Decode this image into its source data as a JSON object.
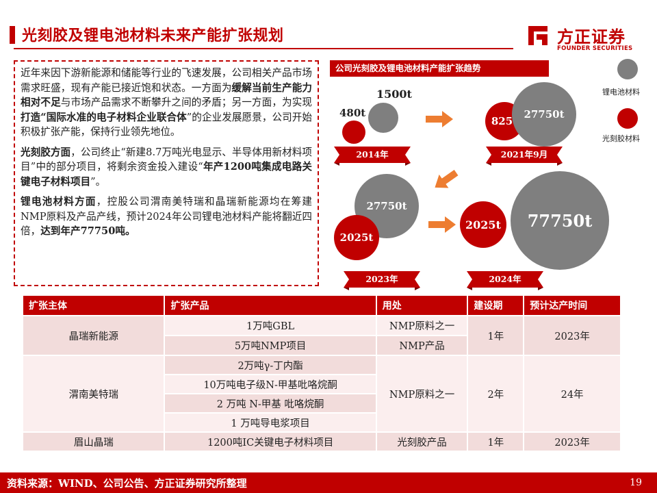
{
  "page": {
    "title": "光刻胶及锂电池材料未来产能扩张规划",
    "logo_cn": "方正证券",
    "logo_en": "FOUNDER SECURITIES",
    "page_number": "19",
    "source": "资料来源：WIND、公司公告、方正证券研究所整理"
  },
  "text": {
    "p1": [
      {
        "t": "近年来因下游新能源和储能等行业的飞速发展，公司相关产品市场需求旺盛，现有产能已接近饱和状态。一方面为"
      },
      {
        "t": "缓解当前生产能力相对不足",
        "b": true
      },
      {
        "t": "与市场产品需求不断攀升之间的矛盾；另一方面，为实现"
      },
      {
        "t": "打造“国际水准的电子材料企业联合体",
        "b": true
      },
      {
        "t": "”的企业发展愿景，公司开始积极扩张产能，保持行业领先地位。"
      }
    ],
    "p2": [
      {
        "t": "光刻胶方面",
        "b": true
      },
      {
        "t": "，公司终止“新建8.7万吨光电显示、半导体用新材料项目”中的部分项目，将剩余资金投入建设“"
      },
      {
        "t": "年产1200吨集成电路关键电子材料项目",
        "b": true
      },
      {
        "t": "”。"
      }
    ],
    "p3": [
      {
        "t": "锂电池材料方面",
        "b": true
      },
      {
        "t": "，控股公司渭南美特瑞和晶瑞新能源均在筹建NMP原料及产品产线，预计2024年公司锂电池材料产能将翻近四倍，"
      },
      {
        "t": "达到年产77750吨。",
        "b": true
      }
    ]
  },
  "chart": {
    "title": "公司光刻胶及锂电池材料产能扩张趋势",
    "legend": [
      {
        "label": "锂电池材料",
        "color": "#7f7f7f"
      },
      {
        "label": "光刻胶材料",
        "color": "#c00000"
      }
    ],
    "colors": {
      "accent": "#c00000",
      "grey": "#7f7f7f",
      "arrow": "#ed7d31"
    },
    "periods": [
      {
        "label": "2014年",
        "lithium": "1500t",
        "photoresist": "480t"
      },
      {
        "label": "2021年9月",
        "lithium": "27750t",
        "photoresist": "825t"
      },
      {
        "label": "2023年",
        "lithium": "27750t",
        "photoresist": "2025t"
      },
      {
        "label": "2024年",
        "lithium": "77750t",
        "photoresist": "2025t"
      }
    ]
  },
  "table": {
    "headers": [
      "扩张主体",
      "扩张产品",
      "用处",
      "建设期",
      "预计达产时间"
    ],
    "groups": [
      {
        "entity": "晶瑞新能源",
        "rows": [
          {
            "product": "1万吨GBL",
            "use": "NMP原料之一"
          },
          {
            "product": "5万吨NMP项目",
            "use": "NMP产品"
          }
        ],
        "period": "1年",
        "target": "2023年"
      },
      {
        "entity": "渭南美特瑞",
        "rows": [
          {
            "product": "2万吨γ-丁内酯"
          },
          {
            "product": "10万吨电子级N-甲基吡咯烷酮"
          },
          {
            "product": "2 万吨 N-甲基 吡咯烷酮"
          },
          {
            "product": "1 万吨导电浆项目"
          }
        ],
        "use": "NMP原料之一",
        "period": "2年",
        "target": "24年"
      },
      {
        "entity": "眉山晶瑞",
        "rows": [
          {
            "product": "1200吨IC关键电子材料项目",
            "use": "光刻胶产品"
          }
        ],
        "period": "1年",
        "target": "2023年"
      }
    ]
  }
}
